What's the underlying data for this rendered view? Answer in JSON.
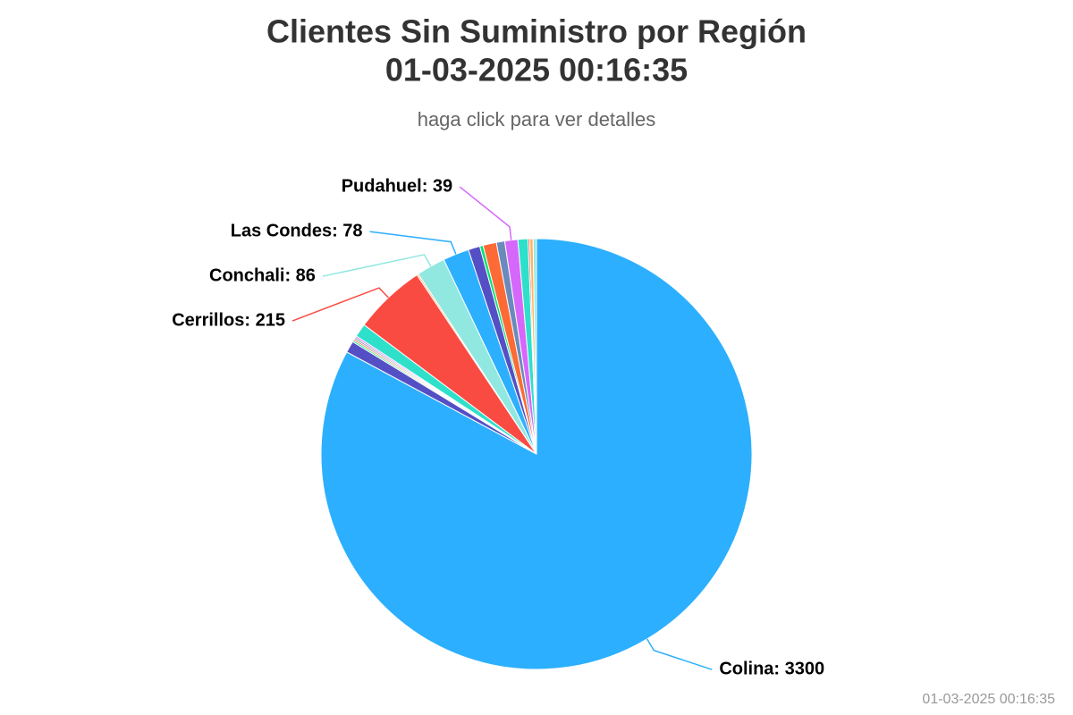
{
  "chart_data": {
    "type": "pie",
    "title": [
      "Clientes Sin Suministro por Región",
      "01-03-2025 00:16:35"
    ],
    "subtitle": "haga click para ver detalles",
    "footer": "01-03-2025 00:16:35",
    "categories": [
      "Colina",
      null,
      null,
      null,
      null,
      null,
      null,
      "Cerrillos",
      null,
      "Conchali",
      "Las Condes",
      null,
      null,
      null,
      null,
      "Pudahuel",
      null,
      null,
      null,
      null
    ],
    "values": [
      3300,
      35,
      5,
      5,
      5,
      5,
      40,
      215,
      5,
      86,
      78,
      35,
      10,
      40,
      25,
      39,
      30,
      5,
      10,
      10
    ],
    "value_labels": [
      "Colina: 3300",
      null,
      null,
      null,
      null,
      null,
      null,
      "Cerrillos: 215",
      null,
      "Conchali: 86",
      "Las Condes: 78",
      null,
      null,
      null,
      null,
      "Pudahuel: 39",
      null,
      null,
      null,
      null
    ],
    "colors": [
      "#2caffe",
      "#544fc5",
      "#00e272",
      "#fe6a35",
      "#6b8abc",
      "#d568fb",
      "#2ee0ca",
      "#fa4b42",
      "#feb56a",
      "#91e8e1",
      "#2caffe",
      "#544fc5",
      "#00e272",
      "#fe6a35",
      "#6b8abc",
      "#d568fb",
      "#2ee0ca",
      "#fa4b42",
      "#feb56a",
      "#91e8e1"
    ]
  }
}
